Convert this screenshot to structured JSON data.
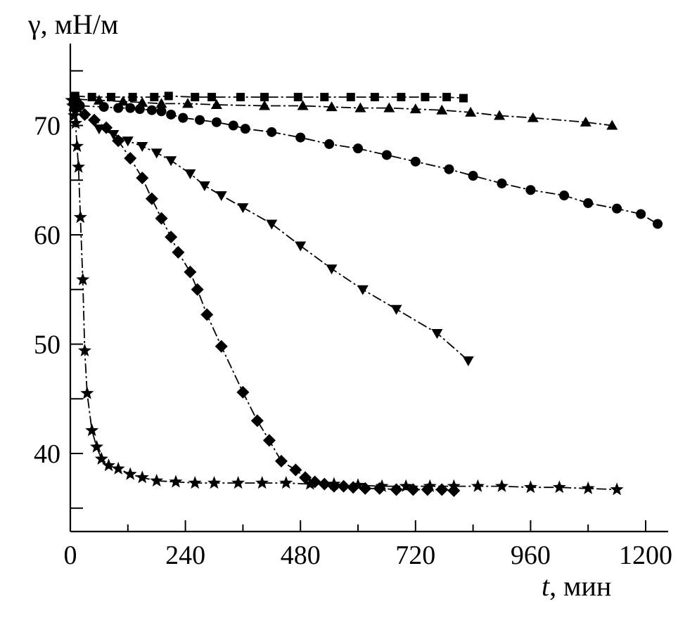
{
  "chart_data": {
    "type": "scatter",
    "title": "",
    "ylabel": "γ, мН/м",
    "xlabel_italic": "t",
    "xlabel_unit": ", мин",
    "xlim": [
      0,
      1260
    ],
    "ylim": [
      33,
      76
    ],
    "x_ticks": [
      0,
      240,
      480,
      720,
      960,
      1200
    ],
    "x_tick_labels": [
      "0",
      "240",
      "480",
      "720",
      "960",
      "1200"
    ],
    "x_minor_ticks": [
      120,
      360,
      600,
      840,
      1080
    ],
    "y_ticks": [
      40,
      50,
      60,
      70
    ],
    "y_tick_labels": [
      "40",
      "50",
      "60",
      "70"
    ],
    "y_minor_ticks": [
      35,
      45,
      55,
      65,
      75
    ],
    "grid": false,
    "series": [
      {
        "name": "square",
        "marker": "square",
        "x": [
          10,
          45,
          85,
          130,
          175,
          205,
          260,
          295,
          355,
          405,
          475,
          530,
          585,
          635,
          690,
          740,
          785,
          820
        ],
        "y": [
          72.7,
          72.6,
          72.6,
          72.6,
          72.6,
          72.7,
          72.6,
          72.6,
          72.6,
          72.6,
          72.6,
          72.6,
          72.6,
          72.6,
          72.6,
          72.6,
          72.6,
          72.5
        ]
      },
      {
        "name": "triangle-up",
        "marker": "triangle-up",
        "x": [
          15,
          60,
          110,
          150,
          190,
          245,
          305,
          405,
          485,
          545,
          605,
          665,
          720,
          775,
          835,
          895,
          965,
          1075,
          1130
        ],
        "y": [
          72.4,
          72.3,
          72.2,
          72.1,
          72.0,
          72.0,
          71.9,
          71.8,
          71.8,
          71.7,
          71.6,
          71.6,
          71.5,
          71.4,
          71.2,
          70.9,
          70.7,
          70.3,
          70.0
        ]
      },
      {
        "name": "circle",
        "marker": "circle",
        "x": [
          20,
          70,
          100,
          125,
          145,
          170,
          190,
          210,
          235,
          270,
          305,
          340,
          365,
          420,
          480,
          540,
          600,
          660,
          720,
          790,
          840,
          900,
          960,
          1030,
          1080,
          1140,
          1190,
          1225
        ],
        "y": [
          71.8,
          71.7,
          71.6,
          71.6,
          71.5,
          71.4,
          71.3,
          71.0,
          70.7,
          70.5,
          70.3,
          70.0,
          69.7,
          69.4,
          68.9,
          68.3,
          67.9,
          67.3,
          66.7,
          66.0,
          65.4,
          64.7,
          64.1,
          63.6,
          62.9,
          62.4,
          61.9,
          61.0
        ]
      },
      {
        "name": "triangle-down",
        "marker": "triangle-down",
        "x": [
          15,
          60,
          90,
          120,
          150,
          180,
          210,
          250,
          280,
          315,
          360,
          420,
          480,
          545,
          610,
          680,
          765,
          830
        ],
        "y": [
          71.6,
          69.7,
          69.2,
          68.6,
          68.1,
          67.5,
          66.8,
          65.6,
          64.5,
          63.6,
          62.5,
          61.0,
          59.0,
          56.9,
          55.0,
          53.2,
          51.0,
          48.5
        ]
      },
      {
        "name": "diamond",
        "marker": "diamond",
        "x": [
          10,
          30,
          50,
          75,
          100,
          125,
          150,
          170,
          190,
          210,
          225,
          250,
          265,
          285,
          315,
          360,
          390,
          415,
          440,
          470,
          490,
          510,
          530,
          550,
          570,
          590,
          615,
          645,
          680,
          715,
          745,
          775,
          800
        ],
        "y": [
          71.5,
          71.0,
          70.5,
          69.8,
          68.6,
          67.0,
          65.2,
          63.3,
          61.5,
          59.8,
          58.4,
          56.6,
          55.0,
          52.7,
          49.8,
          45.6,
          43.0,
          41.2,
          39.3,
          38.5,
          37.8,
          37.4,
          37.2,
          37.0,
          37.0,
          36.9,
          36.8,
          36.8,
          36.7,
          36.7,
          36.7,
          36.7,
          36.6
        ]
      },
      {
        "name": "star",
        "marker": "star",
        "x": [
          3,
          5,
          8,
          11,
          14,
          17,
          21,
          26,
          30,
          35,
          45,
          55,
          65,
          80,
          100,
          125,
          150,
          180,
          220,
          260,
          300,
          350,
          400,
          450,
          500,
          550,
          600,
          650,
          700,
          750,
          800,
          850,
          900,
          960,
          1020,
          1080,
          1140
        ],
        "y": [
          72.3,
          71.8,
          70.9,
          70.2,
          68.1,
          66.2,
          61.6,
          55.9,
          49.4,
          45.5,
          42.1,
          40.6,
          39.5,
          38.9,
          38.6,
          38.1,
          37.8,
          37.5,
          37.4,
          37.3,
          37.3,
          37.3,
          37.3,
          37.3,
          37.2,
          37.2,
          37.1,
          37.0,
          37.0,
          37.0,
          37.0,
          37.0,
          37.0,
          36.9,
          36.9,
          36.8,
          36.7
        ]
      }
    ]
  }
}
